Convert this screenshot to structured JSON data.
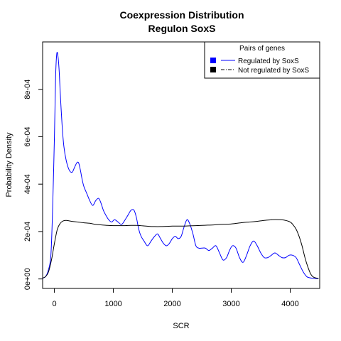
{
  "chart_data": {
    "type": "line",
    "title": "Coexpression Distribution",
    "subtitle": "Regulon SoxS",
    "xlabel": "SCR",
    "ylabel": "Probability Density",
    "xlim": [
      -200,
      4500
    ],
    "ylim": [
      -4e-05,
      0.001
    ],
    "x_ticks": [
      0,
      1000,
      2000,
      3000,
      4000
    ],
    "x_tick_labels": [
      "0",
      "1000",
      "2000",
      "3000",
      "4000"
    ],
    "y_ticks": [
      0,
      0.0002,
      0.0004,
      0.0006,
      0.0008
    ],
    "y_tick_labels": [
      "0e+00",
      "2e-04",
      "4e-04",
      "6e-04",
      "8e-04"
    ],
    "grid": false,
    "legend": {
      "title": "Pairs of genes",
      "placement": "top-right",
      "entries": [
        {
          "label": "Regulated by  SoxS",
          "color": "#0000ff"
        },
        {
          "label": "Not regulated by  SoxS",
          "color": "#000000"
        }
      ]
    },
    "series": [
      {
        "name": "Regulated by  SoxS",
        "color": "#0000ff",
        "x": [
          -220,
          -150,
          -100,
          -60,
          -30,
          0,
          20,
          40,
          60,
          80,
          100,
          130,
          160,
          200,
          250,
          300,
          340,
          380,
          410,
          440,
          470,
          500,
          550,
          600,
          650,
          700,
          750,
          790,
          830,
          870,
          920,
          970,
          1020,
          1080,
          1140,
          1200,
          1250,
          1300,
          1350,
          1390,
          1430,
          1470,
          1520,
          1580,
          1640,
          1700,
          1750,
          1800,
          1850,
          1900,
          1950,
          2000,
          2050,
          2100,
          2150,
          2200,
          2250,
          2300,
          2350,
          2400,
          2450,
          2500,
          2560,
          2620,
          2680,
          2740,
          2800,
          2860,
          2920,
          2970,
          3020,
          3080,
          3140,
          3200,
          3260,
          3320,
          3380,
          3440,
          3500,
          3560,
          3620,
          3680,
          3740,
          3800,
          3860,
          3920,
          3980,
          4040,
          4100,
          4160,
          4220,
          4280,
          4330,
          4380,
          4430,
          4480
        ],
        "y": [
          2e-06,
          1e-05,
          4e-05,
          0.0001,
          0.0003,
          0.0006,
          0.00085,
          0.00095,
          0.00094,
          0.00088,
          0.00078,
          0.00065,
          0.00056,
          0.0005,
          0.00046,
          0.00045,
          0.00047,
          0.00049,
          0.00049,
          0.00046,
          0.00042,
          0.00039,
          0.00036,
          0.00033,
          0.00031,
          0.00033,
          0.00034,
          0.00032,
          0.00029,
          0.00027,
          0.00025,
          0.00024,
          0.00025,
          0.00024,
          0.00023,
          0.00025,
          0.00027,
          0.00029,
          0.00029,
          0.00026,
          0.00021,
          0.00018,
          0.00016,
          0.00014,
          0.00016,
          0.00018,
          0.00019,
          0.00017,
          0.00015,
          0.00014,
          0.00015,
          0.00017,
          0.00018,
          0.00017,
          0.00018,
          0.00022,
          0.00025,
          0.00023,
          0.00019,
          0.00014,
          0.00013,
          0.00013,
          0.00013,
          0.00012,
          0.00013,
          0.00014,
          0.00011,
          8e-05,
          9e-05,
          0.00012,
          0.00014,
          0.00013,
          9e-05,
          7e-05,
          0.0001,
          0.00014,
          0.00016,
          0.00014,
          0.00011,
          9e-05,
          9e-05,
          0.0001,
          0.00011,
          0.0001,
          9e-05,
          9e-05,
          0.0001,
          0.0001,
          9e-05,
          6e-05,
          3e-05,
          1e-05,
          5e-06,
          3e-06,
          2e-06,
          1e-06
        ]
      },
      {
        "name": "Not regulated by  SoxS",
        "color": "#000000",
        "x": [
          -220,
          -150,
          -100,
          -50,
          0,
          50,
          100,
          150,
          200,
          250,
          300,
          400,
          500,
          600,
          700,
          800,
          900,
          1000,
          1100,
          1200,
          1300,
          1400,
          1500,
          1600,
          1700,
          1800,
          1900,
          2000,
          2100,
          2200,
          2300,
          2400,
          2500,
          2600,
          2700,
          2800,
          2900,
          3000,
          3100,
          3200,
          3300,
          3400,
          3500,
          3600,
          3700,
          3800,
          3900,
          4000,
          4050,
          4100,
          4150,
          4200,
          4250,
          4300,
          4350,
          4400,
          4480
        ],
        "y": [
          2e-06,
          1e-05,
          3e-05,
          8e-05,
          0.00015,
          0.00021,
          0.000235,
          0.000245,
          0.000247,
          0.000245,
          0.000243,
          0.00024,
          0.000237,
          0.000235,
          0.00023,
          0.000228,
          0.000226,
          0.000225,
          0.000225,
          0.000225,
          0.000226,
          0.000226,
          0.000224,
          0.000222,
          0.000221,
          0.000221,
          0.000222,
          0.000223,
          0.000223,
          0.000223,
          0.000224,
          0.000225,
          0.000226,
          0.000227,
          0.000228,
          0.00023,
          0.000231,
          0.000232,
          0.000235,
          0.000238,
          0.00024,
          0.000242,
          0.000245,
          0.000248,
          0.00025,
          0.00025,
          0.000248,
          0.00024,
          0.000228,
          0.00021,
          0.00018,
          0.00014,
          9e-05,
          5e-05,
          2e-05,
          7e-06,
          2e-06
        ]
      }
    ]
  }
}
